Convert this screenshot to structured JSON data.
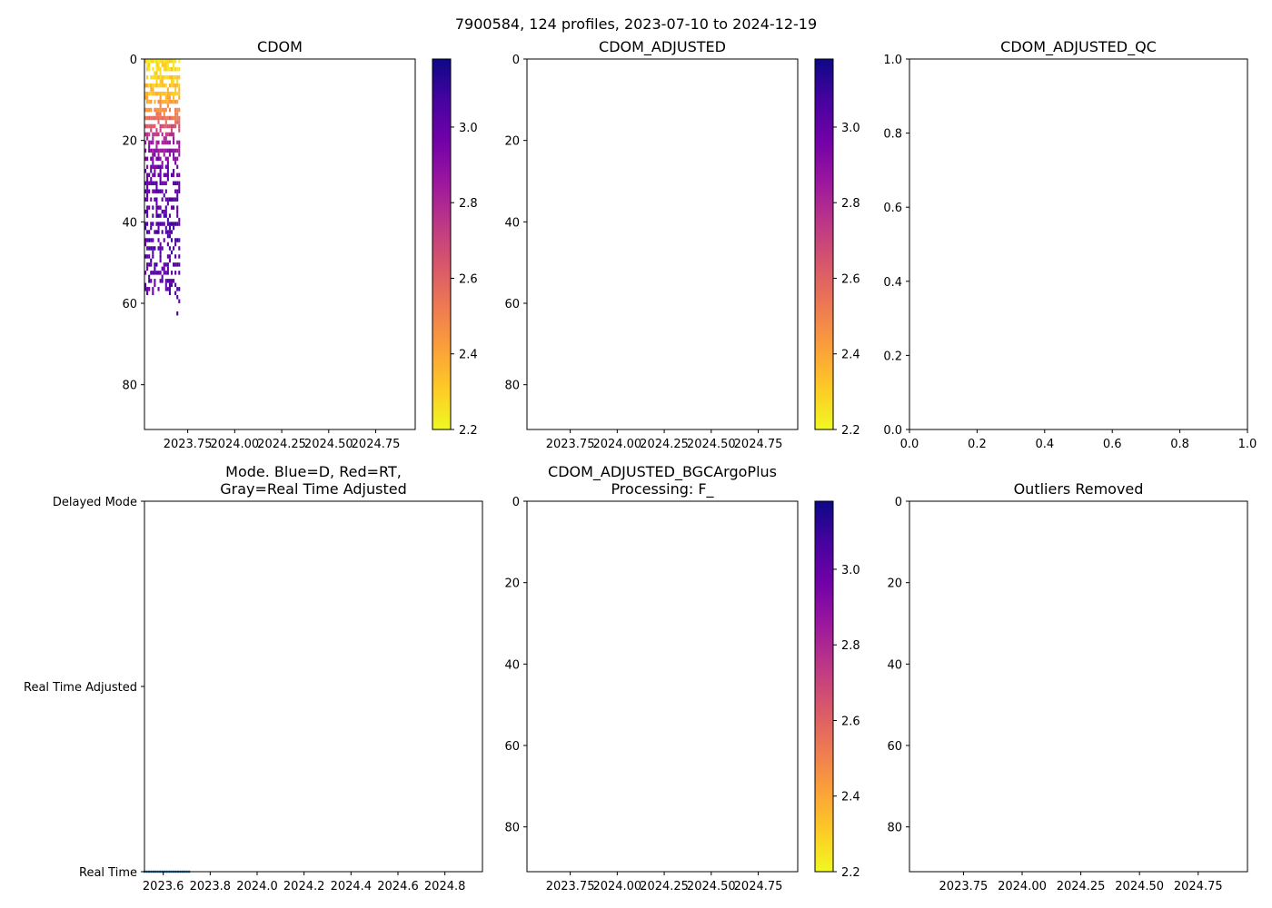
{
  "suptitle": "7900584, 124 profiles, 2023-07-10 to 2024-12-19",
  "colormap": {
    "name": "plasma_r",
    "stops": [
      "#f0f921",
      "#fdca26",
      "#fb9f3a",
      "#ed7953",
      "#d8576b",
      "#bd3786",
      "#9c179e",
      "#7201a8",
      "#46039f",
      "#0d0887"
    ]
  },
  "chart_data": [
    {
      "id": "cdom",
      "type": "heatmap",
      "title": "CDOM",
      "xlim": [
        2023.52,
        2024.96
      ],
      "ylim": [
        91,
        0
      ],
      "xticks": [
        2023.75,
        2024.0,
        2024.25,
        2024.5,
        2024.75
      ],
      "xtick_labels": [
        "2023.75",
        "2024.00",
        "2024.25",
        "2024.50",
        "2024.75"
      ],
      "yticks": [
        0,
        20,
        40,
        60,
        80
      ],
      "ytick_labels": [
        "0",
        "20",
        "40",
        "60",
        "80"
      ],
      "colorbar": {
        "range": [
          2.2,
          3.18
        ],
        "ticks": [
          2.2,
          2.4,
          2.6,
          2.8,
          3.0
        ],
        "tick_labels": [
          "2.2",
          "2.4",
          "2.6",
          "2.8",
          "3.0"
        ]
      },
      "data_extent": {
        "time": [
          2023.52,
          2023.71
        ],
        "depth": [
          0,
          64
        ]
      },
      "value_gradient": [
        [
          0,
          2.25
        ],
        [
          8,
          2.35
        ],
        [
          14,
          2.55
        ],
        [
          20,
          2.85
        ],
        [
          28,
          3.0
        ],
        [
          40,
          3.05
        ],
        [
          64,
          3.02
        ]
      ]
    },
    {
      "id": "cdom-adjusted",
      "type": "heatmap",
      "title": "CDOM_ADJUSTED",
      "xlim": [
        2023.52,
        2024.96
      ],
      "ylim": [
        91,
        0
      ],
      "xticks": [
        2023.75,
        2024.0,
        2024.25,
        2024.5,
        2024.75
      ],
      "xtick_labels": [
        "2023.75",
        "2024.00",
        "2024.25",
        "2024.50",
        "2024.75"
      ],
      "yticks": [
        0,
        20,
        40,
        60,
        80
      ],
      "ytick_labels": [
        "0",
        "20",
        "40",
        "60",
        "80"
      ],
      "colorbar": {
        "range": [
          2.2,
          3.18
        ],
        "ticks": [
          2.2,
          2.4,
          2.6,
          2.8,
          3.0
        ],
        "tick_labels": [
          "2.2",
          "2.4",
          "2.6",
          "2.8",
          "3.0"
        ]
      }
    },
    {
      "id": "cdom-adjusted-qc",
      "type": "scatter",
      "title": "CDOM_ADJUSTED_QC",
      "xlim": [
        0,
        1
      ],
      "ylim": [
        0,
        1
      ],
      "xticks": [
        0,
        0.2,
        0.4,
        0.6,
        0.8,
        1.0
      ],
      "xtick_labels": [
        "0.0",
        "0.2",
        "0.4",
        "0.6",
        "0.8",
        "1.0"
      ],
      "yticks": [
        0,
        0.2,
        0.4,
        0.6,
        0.8,
        1.0
      ],
      "ytick_labels": [
        "0.0",
        "0.2",
        "0.4",
        "0.6",
        "0.8",
        "1.0"
      ]
    },
    {
      "id": "mode",
      "type": "scatter",
      "title": [
        "Mode. Blue=D, Red=RT,",
        "Gray=Real Time Adjusted"
      ],
      "xlim": [
        2023.52,
        2024.96
      ],
      "ylim": [
        0,
        2
      ],
      "xticks": [
        2023.6,
        2023.8,
        2024.0,
        2024.2,
        2024.4,
        2024.6,
        2024.8
      ],
      "xtick_labels": [
        "2023.6",
        "2023.8",
        "2024.0",
        "2024.2",
        "2024.4",
        "2024.6",
        "2024.8"
      ],
      "yticks": [
        0,
        1,
        2
      ],
      "ytick_labels": [
        "Real Time",
        "Real Time Adjusted",
        "Delayed Mode"
      ],
      "series": [
        {
          "name": "mode",
          "x_range": [
            2023.52,
            2023.71
          ],
          "y": 0,
          "count": 21,
          "color": "#1f77b4"
        }
      ]
    },
    {
      "id": "bgcargoplus",
      "type": "heatmap",
      "title": [
        "CDOM_ADJUSTED_BGCArgoPlus",
        "Processing: F_"
      ],
      "xlim": [
        2023.52,
        2024.96
      ],
      "ylim": [
        91,
        0
      ],
      "xticks": [
        2023.75,
        2024.0,
        2024.25,
        2024.5,
        2024.75
      ],
      "xtick_labels": [
        "2023.75",
        "2024.00",
        "2024.25",
        "2024.50",
        "2024.75"
      ],
      "yticks": [
        0,
        20,
        40,
        60,
        80
      ],
      "ytick_labels": [
        "0",
        "20",
        "40",
        "60",
        "80"
      ],
      "colorbar": {
        "range": [
          2.2,
          3.18
        ],
        "ticks": [
          2.2,
          2.4,
          2.6,
          2.8,
          3.0
        ],
        "tick_labels": [
          "2.2",
          "2.4",
          "2.6",
          "2.8",
          "3.0"
        ]
      }
    },
    {
      "id": "outliers",
      "type": "scatter",
      "title": "Outliers Removed",
      "xlim": [
        2023.52,
        2024.96
      ],
      "ylim": [
        91,
        0
      ],
      "xticks": [
        2023.75,
        2024.0,
        2024.25,
        2024.5,
        2024.75
      ],
      "xtick_labels": [
        "2023.75",
        "2024.00",
        "2024.25",
        "2024.50",
        "2024.75"
      ],
      "yticks": [
        0,
        20,
        40,
        60,
        80
      ],
      "ytick_labels": [
        "0",
        "20",
        "40",
        "60",
        "80"
      ]
    }
  ]
}
